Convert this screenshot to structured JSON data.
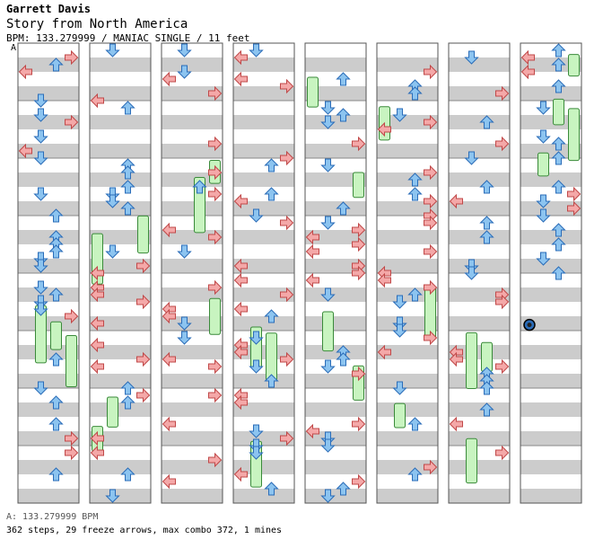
{
  "header": {
    "author": "Garrett Davis",
    "song_title": "Story from North America",
    "info": "BPM: 133.279999 / MANIAC SINGLE / 11 feet",
    "bpm_marker": "A"
  },
  "footer": {
    "bpm_line": "A: 133.279999 BPM",
    "stats_line": "362 steps, 29 freeze arrows, max combo 372, 1 mines"
  },
  "colors": {
    "left_right": "#f4a8a8",
    "left_right_stroke": "#c04848",
    "up_down": "#8cc4f0",
    "up_down_stroke": "#2a6cb8",
    "freeze": "#c8f4c0",
    "freeze_stroke": "#3a8a3a",
    "band": "#cccccc",
    "border": "#555555"
  },
  "chart": {
    "columns": 8,
    "measures_per_column": 8,
    "last_column_measures": 4.5
  }
}
